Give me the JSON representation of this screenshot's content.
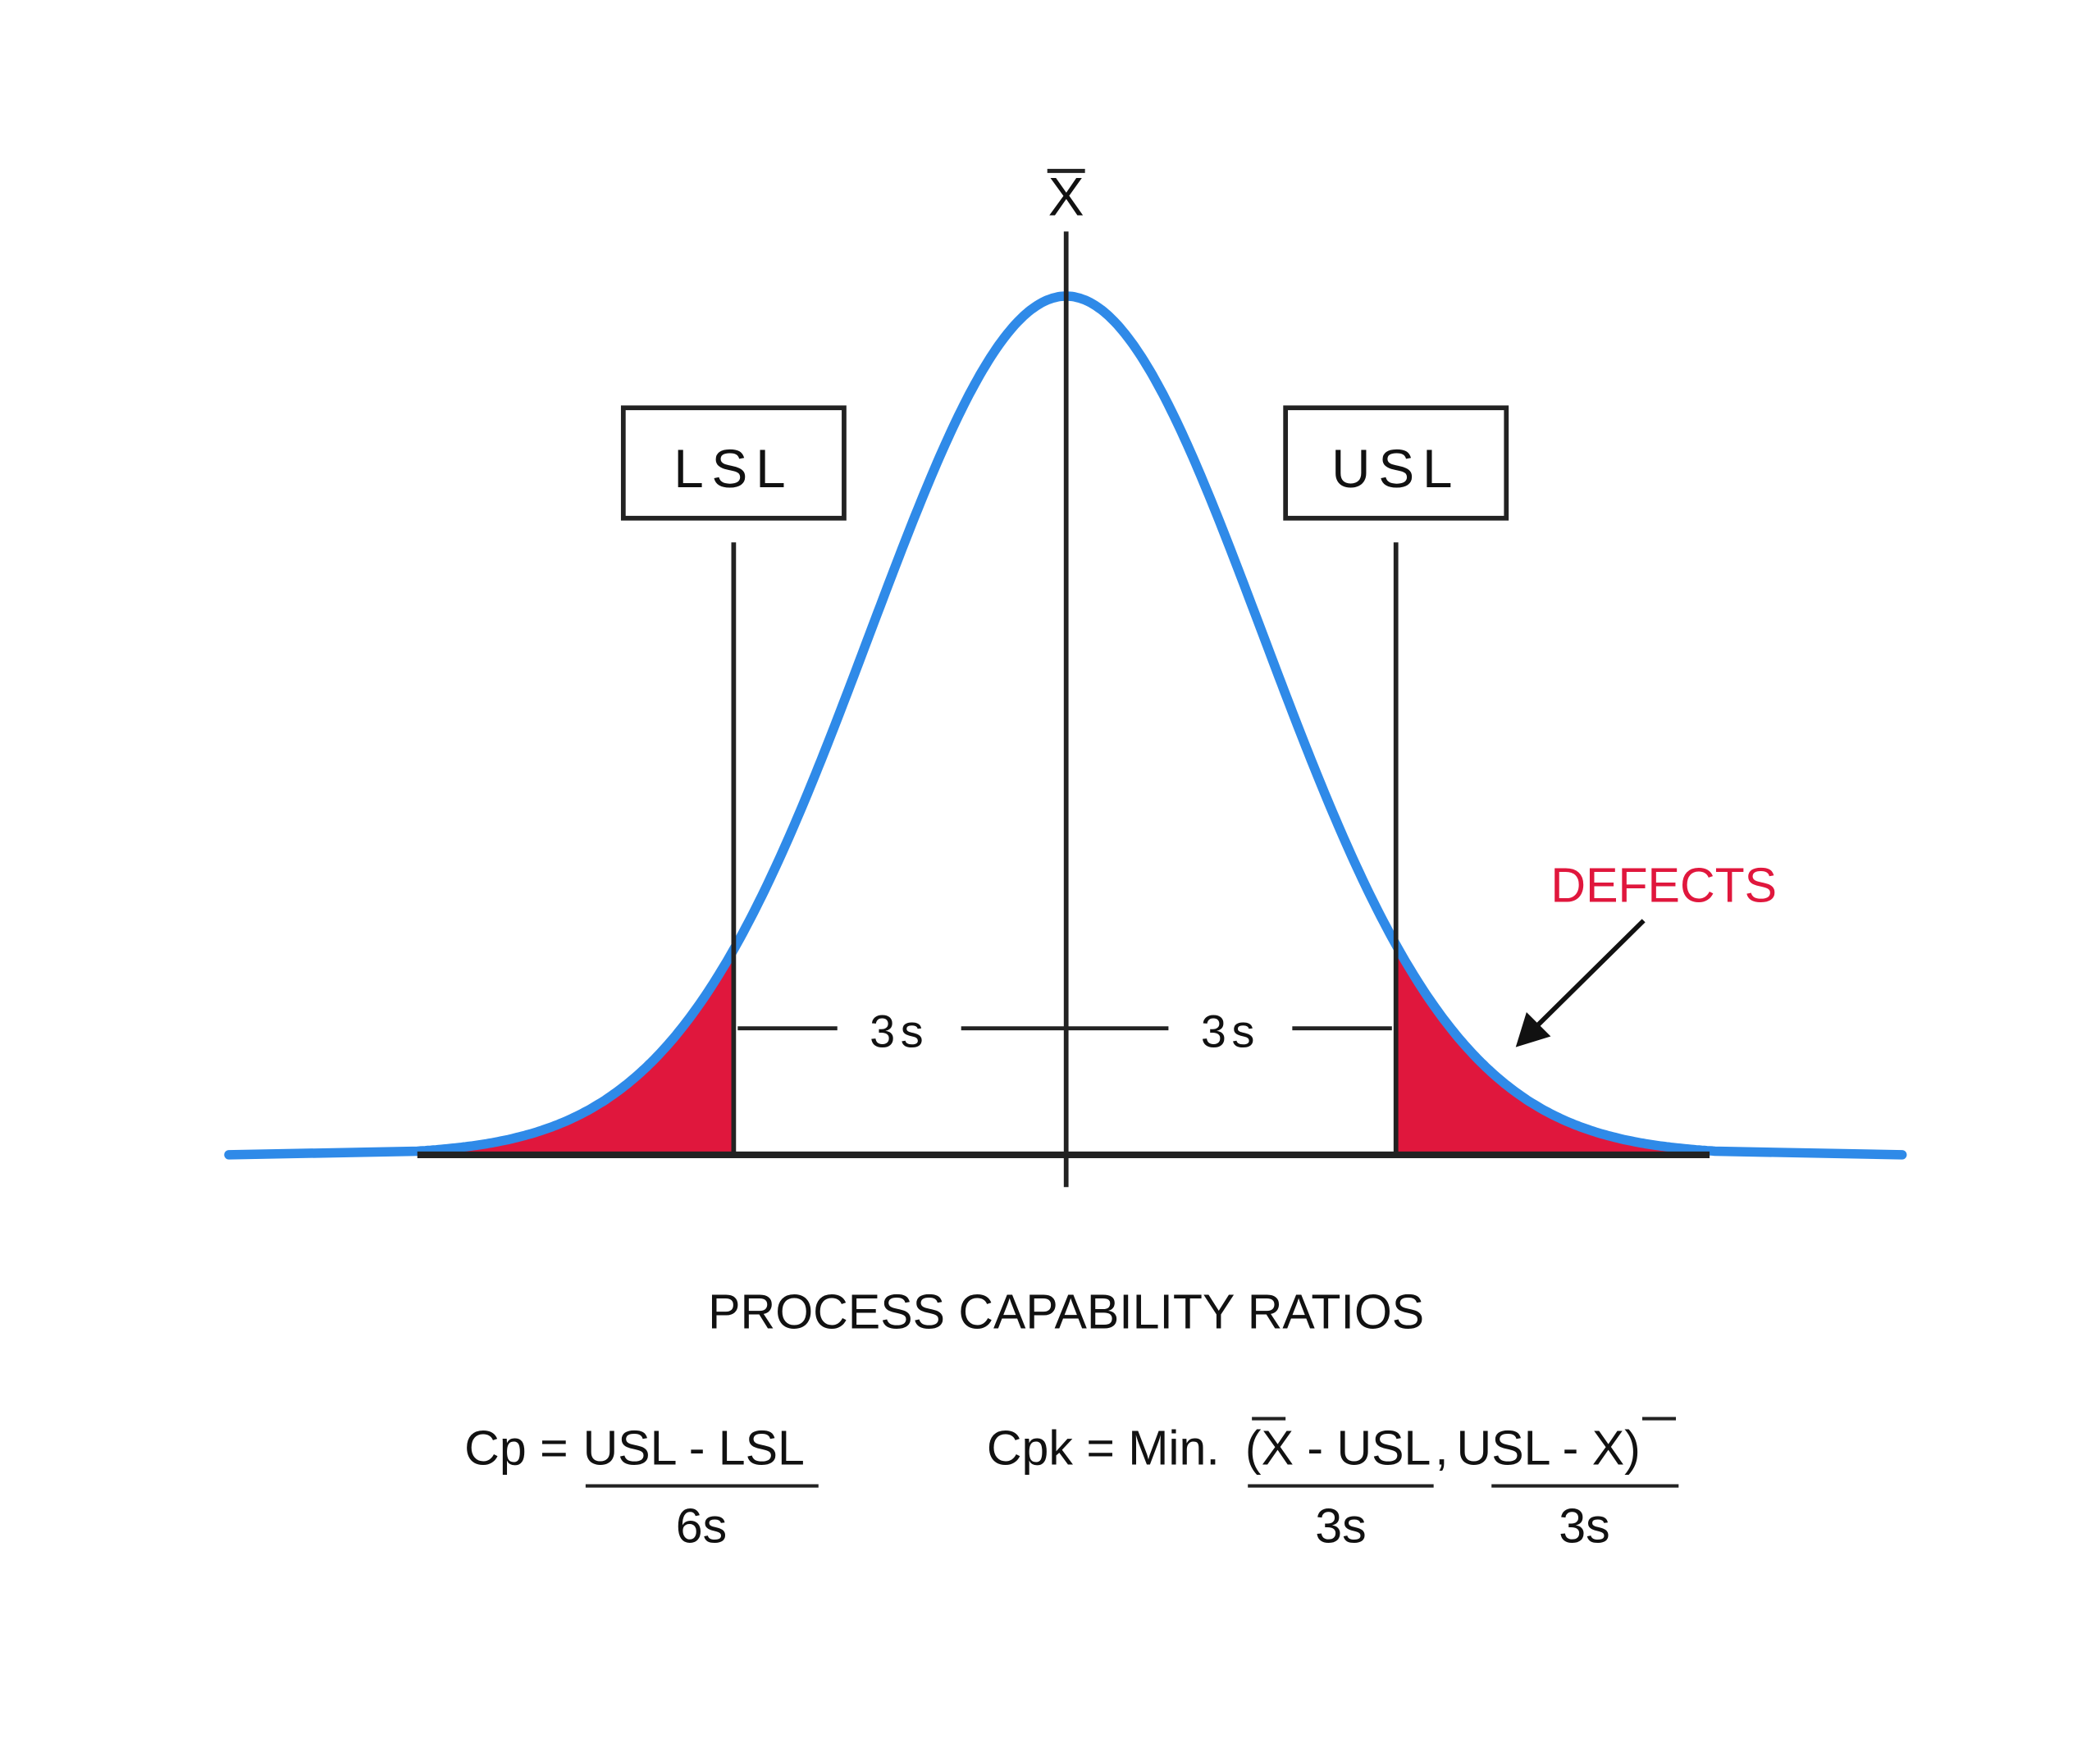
{
  "diagram": {
    "mean_label": "X",
    "lsl": "LSL",
    "usl": "USL",
    "left_span": "3s",
    "right_span": "3s",
    "defects": "DEFECTS"
  },
  "title": "PROCESS CAPABILITY RATIOS",
  "formulas": [
    {
      "lhs": "Cp =",
      "numerator": "USL - LSL",
      "denominator": "6s"
    },
    {
      "lhs": "Cpk = Min.",
      "terms": [
        {
          "numerator": "(X - USL",
          "denominator": "3s"
        },
        {
          "numerator": "USL - X)",
          "denominator": "3s"
        }
      ],
      "separator": ","
    }
  ]
}
